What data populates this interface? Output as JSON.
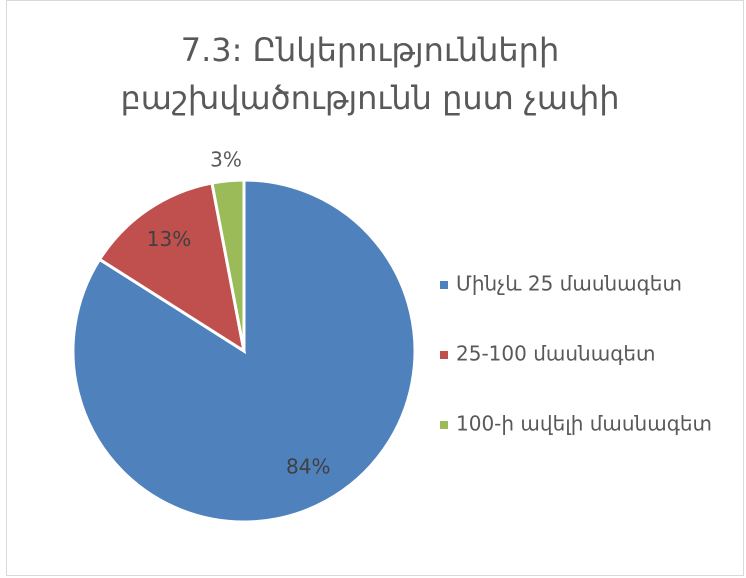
{
  "chart_data": {
    "type": "pie",
    "title": "7.3: Ընկերությունների բաշխվածությունն ըստ չափի",
    "categories": [
      "Մինչև 25 մասնագետ",
      "25-100 մասնագետ",
      "100-ի ավելի մասնագետ"
    ],
    "values": [
      84,
      13,
      3
    ],
    "value_labels": [
      "84%",
      "13%",
      "3%"
    ],
    "colors": [
      "#4f81bd",
      "#c0504d",
      "#9bbb59"
    ],
    "legend": "right"
  }
}
